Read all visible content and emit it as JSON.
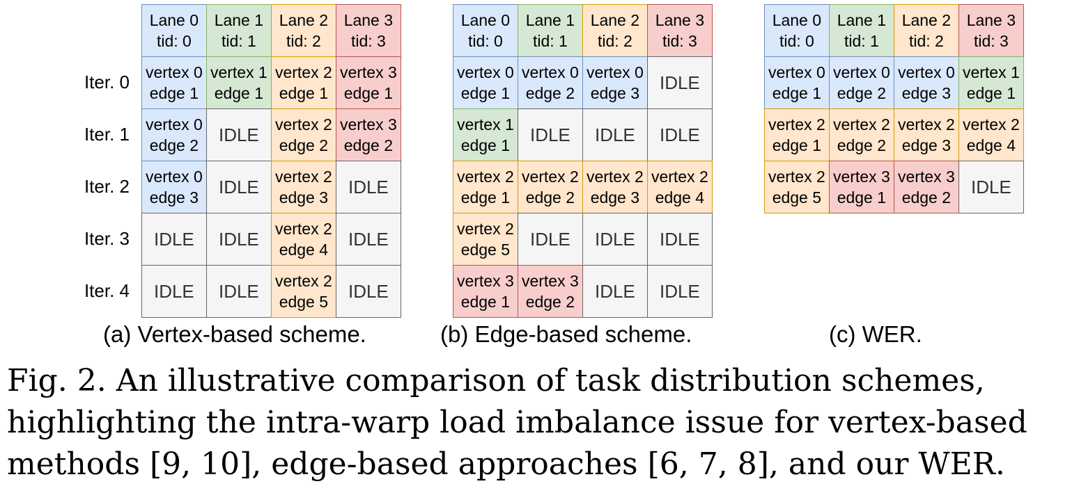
{
  "iter_labels": [
    "Iter. 0",
    "Iter. 1",
    "Iter. 2",
    "Iter. 3",
    "Iter. 4"
  ],
  "colors": {
    "blue": "#dae8fc",
    "green": "#d5e8d4",
    "orange": "#ffe6cc",
    "red": "#f8cecc",
    "idle": "#f5f5f5"
  },
  "panels": [
    {
      "caption": "(a) Vertex-based scheme.",
      "header": [
        {
          "l1": "Lane 0",
          "l2": "tid: 0",
          "c": "blue"
        },
        {
          "l1": "Lane 1",
          "l2": "tid: 1",
          "c": "green"
        },
        {
          "l1": "Lane 2",
          "l2": "tid: 2",
          "c": "orange"
        },
        {
          "l1": "Lane 3",
          "l2": "tid: 3",
          "c": "red"
        }
      ],
      "rows": [
        [
          {
            "l1": "vertex 0",
            "l2": "edge 1",
            "c": "blue"
          },
          {
            "l1": "vertex 1",
            "l2": "edge 1",
            "c": "green"
          },
          {
            "l1": "vertex 2",
            "l2": "edge 1",
            "c": "orange"
          },
          {
            "l1": "vertex 3",
            "l2": "edge 1",
            "c": "red"
          }
        ],
        [
          {
            "l1": "vertex 0",
            "l2": "edge 2",
            "c": "blue"
          },
          {
            "l1": "IDLE",
            "c": "idle"
          },
          {
            "l1": "vertex 2",
            "l2": "edge 2",
            "c": "orange"
          },
          {
            "l1": "vertex 3",
            "l2": "edge 2",
            "c": "red"
          }
        ],
        [
          {
            "l1": "vertex 0",
            "l2": "edge 3",
            "c": "blue"
          },
          {
            "l1": "IDLE",
            "c": "idle"
          },
          {
            "l1": "vertex 2",
            "l2": "edge 3",
            "c": "orange"
          },
          {
            "l1": "IDLE",
            "c": "idle"
          }
        ],
        [
          {
            "l1": "IDLE",
            "c": "idle"
          },
          {
            "l1": "IDLE",
            "c": "idle"
          },
          {
            "l1": "vertex 2",
            "l2": "edge 4",
            "c": "orange"
          },
          {
            "l1": "IDLE",
            "c": "idle"
          }
        ],
        [
          {
            "l1": "IDLE",
            "c": "idle"
          },
          {
            "l1": "IDLE",
            "c": "idle"
          },
          {
            "l1": "vertex 2",
            "l2": "edge 5",
            "c": "orange"
          },
          {
            "l1": "IDLE",
            "c": "idle"
          }
        ]
      ]
    },
    {
      "caption": "(b) Edge-based scheme.",
      "header": [
        {
          "l1": "Lane 0",
          "l2": "tid: 0",
          "c": "blue"
        },
        {
          "l1": "Lane 1",
          "l2": "tid: 1",
          "c": "green"
        },
        {
          "l1": "Lane 2",
          "l2": "tid: 2",
          "c": "orange"
        },
        {
          "l1": "Lane 3",
          "l2": "tid: 3",
          "c": "red"
        }
      ],
      "rows": [
        [
          {
            "l1": "vertex 0",
            "l2": "edge 1",
            "c": "blue"
          },
          {
            "l1": "vertex 0",
            "l2": "edge 2",
            "c": "blue"
          },
          {
            "l1": "vertex 0",
            "l2": "edge 3",
            "c": "blue"
          },
          {
            "l1": "IDLE",
            "c": "idle"
          }
        ],
        [
          {
            "l1": "vertex 1",
            "l2": "edge 1",
            "c": "green"
          },
          {
            "l1": "IDLE",
            "c": "idle"
          },
          {
            "l1": "IDLE",
            "c": "idle"
          },
          {
            "l1": "IDLE",
            "c": "idle"
          }
        ],
        [
          {
            "l1": "vertex 2",
            "l2": "edge 1",
            "c": "orange"
          },
          {
            "l1": "vertex 2",
            "l2": "edge 2",
            "c": "orange"
          },
          {
            "l1": "vertex 2",
            "l2": "edge 3",
            "c": "orange"
          },
          {
            "l1": "vertex 2",
            "l2": "edge 4",
            "c": "orange"
          }
        ],
        [
          {
            "l1": "vertex 2",
            "l2": "edge 5",
            "c": "orange"
          },
          {
            "l1": "IDLE",
            "c": "idle"
          },
          {
            "l1": "IDLE",
            "c": "idle"
          },
          {
            "l1": "IDLE",
            "c": "idle"
          }
        ],
        [
          {
            "l1": "vertex 3",
            "l2": "edge 1",
            "c": "red"
          },
          {
            "l1": "vertex 3",
            "l2": "edge 2",
            "c": "red"
          },
          {
            "l1": "IDLE",
            "c": "idle"
          },
          {
            "l1": "IDLE",
            "c": "idle"
          }
        ]
      ]
    },
    {
      "caption": "(c) WER.",
      "header": [
        {
          "l1": "Lane 0",
          "l2": "tid: 0",
          "c": "blue"
        },
        {
          "l1": "Lane 1",
          "l2": "tid: 1",
          "c": "green"
        },
        {
          "l1": "Lane 2",
          "l2": "tid: 2",
          "c": "orange"
        },
        {
          "l1": "Lane 3",
          "l2": "tid: 3",
          "c": "red"
        }
      ],
      "rows": [
        [
          {
            "l1": "vertex 0",
            "l2": "edge 1",
            "c": "blue"
          },
          {
            "l1": "vertex 0",
            "l2": "edge 2",
            "c": "blue"
          },
          {
            "l1": "vertex 0",
            "l2": "edge 3",
            "c": "blue"
          },
          {
            "l1": "vertex 1",
            "l2": "edge 1",
            "c": "green"
          }
        ],
        [
          {
            "l1": "vertex 2",
            "l2": "edge 1",
            "c": "orange"
          },
          {
            "l1": "vertex 2",
            "l2": "edge 2",
            "c": "orange"
          },
          {
            "l1": "vertex 2",
            "l2": "edge 3",
            "c": "orange"
          },
          {
            "l1": "vertex 2",
            "l2": "edge 4",
            "c": "orange"
          }
        ],
        [
          {
            "l1": "vertex 2",
            "l2": "edge 5",
            "c": "orange"
          },
          {
            "l1": "vertex 3",
            "l2": "edge 1",
            "c": "red"
          },
          {
            "l1": "vertex 3",
            "l2": "edge 2",
            "c": "red"
          },
          {
            "l1": "IDLE",
            "c": "idle"
          }
        ]
      ]
    }
  ],
  "figure_caption": "Fig. 2.  An illustrative comparison of task distribution schemes, highlighting the intra-warp load imbalance issue for vertex-based methods [9, 10], edge-based approaches [6, 7, 8], and our WER."
}
